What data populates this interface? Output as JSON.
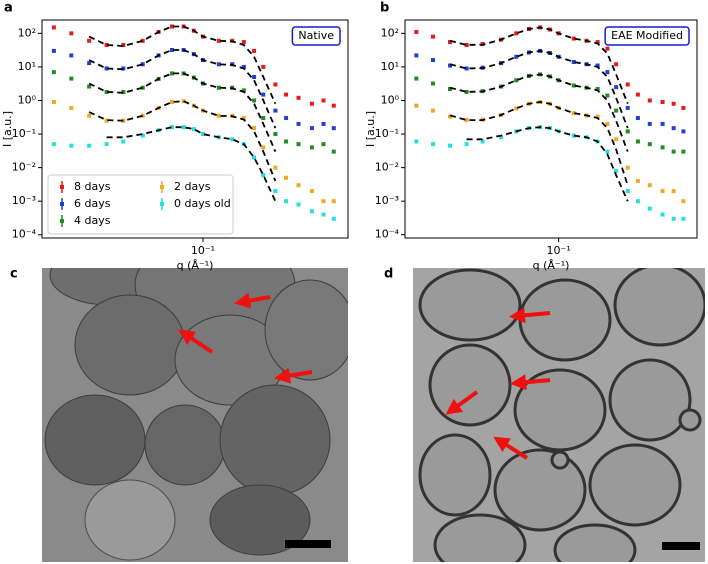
{
  "chart_data": [
    {
      "type": "scatter",
      "label": "a",
      "annotation": "Native",
      "xlabel": "q (Å⁻¹)",
      "ylabel": "I [a.u.]",
      "log_x": true,
      "log_y": true,
      "legend": "lower left",
      "xlim": [
        0.0157,
        0.53
      ],
      "ylim": [
        8e-05,
        250
      ],
      "xticks": [
        {
          "value": 0.1,
          "label": "10⁻¹"
        }
      ],
      "yticks": [
        {
          "value": 0.0001,
          "label": "10⁻⁴"
        },
        {
          "value": 0.001,
          "label": "10⁻³"
        },
        {
          "value": 0.01,
          "label": "10⁻²"
        },
        {
          "value": 0.1,
          "label": "10⁻¹"
        },
        {
          "value": 1,
          "label": "10⁰"
        },
        {
          "value": 10,
          "label": "10¹"
        },
        {
          "value": 100,
          "label": "10²"
        }
      ],
      "x": [
        0.018,
        0.022,
        0.027,
        0.033,
        0.04,
        0.05,
        0.06,
        0.07,
        0.08,
        0.09,
        0.1,
        0.12,
        0.14,
        0.16,
        0.18,
        0.2,
        0.23,
        0.26,
        0.3,
        0.35,
        0.4,
        0.45
      ],
      "series": [
        {
          "name": "8 days",
          "color": "#e41a1c",
          "values": [
            150,
            100,
            60,
            45,
            45,
            60,
            110,
            160,
            160,
            120,
            80,
            60,
            60,
            55,
            30,
            10,
            3,
            1.5,
            1.2,
            0.8,
            1,
            0.7
          ],
          "fit": [
            null,
            null,
            80,
            45,
            42,
            60,
            110,
            160,
            160,
            120,
            80,
            60,
            58,
            45,
            20,
            5,
            0.8,
            null,
            null,
            null,
            null,
            null
          ]
        },
        {
          "name": "6 days",
          "color": "#1f3fd6",
          "values": [
            30,
            22,
            13,
            9,
            9,
            12,
            22,
            32,
            32,
            24,
            16,
            12,
            12,
            10,
            5,
            1.5,
            0.5,
            0.3,
            0.2,
            0.15,
            0.2,
            0.15
          ],
          "fit": [
            null,
            null,
            16,
            9,
            8.5,
            12,
            22,
            32,
            32,
            24,
            16,
            12,
            11.5,
            9,
            4,
            1,
            0.15,
            null,
            null,
            null,
            null,
            null
          ]
        },
        {
          "name": "4 days",
          "color": "#228b22",
          "values": [
            7,
            4.5,
            2.6,
            1.8,
            1.8,
            2.4,
            4.4,
            6.4,
            6.4,
            4.8,
            3.2,
            2.4,
            2.4,
            2,
            1,
            0.3,
            0.1,
            0.06,
            0.05,
            0.04,
            0.05,
            0.03
          ],
          "fit": [
            null,
            null,
            3.2,
            1.8,
            1.7,
            2.4,
            4.4,
            6.4,
            6.4,
            4.8,
            3.2,
            2.4,
            2.3,
            1.8,
            0.8,
            0.2,
            0.03,
            null,
            null,
            null,
            null,
            null
          ]
        },
        {
          "name": "2 days",
          "color": "#f5a623",
          "values": [
            0.9,
            0.6,
            0.35,
            0.25,
            0.25,
            0.35,
            0.6,
            0.9,
            0.95,
            0.7,
            0.5,
            0.35,
            0.35,
            0.3,
            0.15,
            0.04,
            0.01,
            0.005,
            0.003,
            0.002,
            0.001,
            0.001
          ],
          "fit": [
            null,
            null,
            0.45,
            0.26,
            0.25,
            0.35,
            0.6,
            0.9,
            0.95,
            0.7,
            0.5,
            0.35,
            0.34,
            0.27,
            0.12,
            0.03,
            0.004,
            null,
            null,
            null,
            null,
            null
          ]
        },
        {
          "name": "0 days old",
          "color": "#22e0e0",
          "values": [
            0.05,
            0.045,
            0.045,
            0.05,
            0.06,
            0.09,
            0.13,
            0.16,
            0.16,
            0.14,
            0.1,
            0.08,
            0.07,
            0.05,
            0.02,
            0.006,
            0.002,
            0.001,
            0.0008,
            0.0005,
            0.0004,
            0.0003
          ],
          "fit": [
            null,
            null,
            null,
            0.08,
            0.08,
            0.1,
            0.13,
            0.16,
            0.16,
            0.14,
            0.1,
            0.08,
            0.07,
            0.05,
            0.02,
            0.006,
            0.001,
            null,
            null,
            null,
            null,
            null
          ]
        }
      ]
    },
    {
      "type": "scatter",
      "label": "b",
      "annotation": "EAE Modified",
      "xlabel": "q (Å⁻¹)",
      "ylabel": "I [a.u.]",
      "log_x": true,
      "log_y": true,
      "xlim": [
        0.0157,
        0.53
      ],
      "ylim": [
        8e-05,
        250
      ],
      "xticks": [
        {
          "value": 0.1,
          "label": "10⁻¹"
        }
      ],
      "yticks": [
        {
          "value": 0.0001,
          "label": "10⁻⁴"
        },
        {
          "value": 0.001,
          "label": "10⁻³"
        },
        {
          "value": 0.01,
          "label": "10⁻²"
        },
        {
          "value": 0.1,
          "label": "10⁻¹"
        },
        {
          "value": 1,
          "label": "10⁰"
        },
        {
          "value": 10,
          "label": "10¹"
        },
        {
          "value": 100,
          "label": "10²"
        }
      ],
      "x": [
        0.018,
        0.022,
        0.027,
        0.033,
        0.04,
        0.05,
        0.06,
        0.07,
        0.08,
        0.09,
        0.1,
        0.12,
        0.14,
        0.16,
        0.18,
        0.2,
        0.23,
        0.26,
        0.3,
        0.35,
        0.4,
        0.45
      ],
      "series": [
        {
          "color": "#e41a1c",
          "values": [
            110,
            80,
            55,
            45,
            48,
            65,
            100,
            135,
            150,
            130,
            100,
            70,
            60,
            55,
            35,
            12,
            3,
            1.5,
            1,
            0.9,
            0.8,
            0.6
          ],
          "fit": [
            null,
            null,
            60,
            45,
            46,
            65,
            100,
            135,
            150,
            130,
            100,
            70,
            60,
            50,
            25,
            6,
            0.8,
            null,
            null,
            null,
            null,
            null
          ]
        },
        {
          "color": "#1f3fd6",
          "values": [
            22,
            16,
            11,
            9,
            9.5,
            13,
            20,
            27,
            30,
            26,
            20,
            14,
            12,
            11,
            7,
            2.5,
            0.6,
            0.3,
            0.2,
            0.2,
            0.15,
            0.12
          ],
          "fit": [
            null,
            null,
            12,
            9,
            9.2,
            13,
            20,
            27,
            30,
            26,
            20,
            14,
            12,
            10,
            5,
            1.2,
            0.15,
            null,
            null,
            null,
            null,
            null
          ]
        },
        {
          "color": "#228b22",
          "values": [
            4.5,
            3.2,
            2.2,
            1.8,
            1.9,
            2.6,
            4,
            5.4,
            6,
            5.2,
            4,
            2.8,
            2.4,
            2.2,
            1.4,
            0.5,
            0.12,
            0.06,
            0.05,
            0.04,
            0.03,
            0.03
          ],
          "fit": [
            null,
            null,
            2.4,
            1.8,
            1.85,
            2.6,
            4,
            5.4,
            6,
            5.2,
            4,
            2.8,
            2.4,
            2,
            1,
            0.25,
            0.03,
            null,
            null,
            null,
            null,
            null
          ]
        },
        {
          "color": "#f5a623",
          "values": [
            0.7,
            0.5,
            0.33,
            0.26,
            0.27,
            0.37,
            0.58,
            0.8,
            0.9,
            0.8,
            0.6,
            0.42,
            0.36,
            0.33,
            0.2,
            0.07,
            0.01,
            0.004,
            0.003,
            0.002,
            0.002,
            0.001
          ],
          "fit": [
            null,
            null,
            0.36,
            0.26,
            0.26,
            0.37,
            0.58,
            0.8,
            0.9,
            0.8,
            0.6,
            0.42,
            0.36,
            0.3,
            0.15,
            0.035,
            0.003,
            null,
            null,
            null,
            null,
            null
          ]
        },
        {
          "color": "#22e0e0",
          "values": [
            0.06,
            0.05,
            0.045,
            0.05,
            0.06,
            0.08,
            0.12,
            0.15,
            0.16,
            0.15,
            0.12,
            0.09,
            0.08,
            0.06,
            0.03,
            0.008,
            0.002,
            0.001,
            0.0006,
            0.0004,
            0.0003,
            0.0003
          ],
          "fit": [
            null,
            null,
            null,
            0.07,
            0.07,
            0.09,
            0.12,
            0.15,
            0.16,
            0.15,
            0.12,
            0.09,
            0.08,
            0.06,
            0.025,
            0.006,
            0.001,
            null,
            null,
            null,
            null,
            null
          ]
        }
      ]
    }
  ],
  "images": [
    {
      "label": "c"
    },
    {
      "label": "d"
    }
  ]
}
